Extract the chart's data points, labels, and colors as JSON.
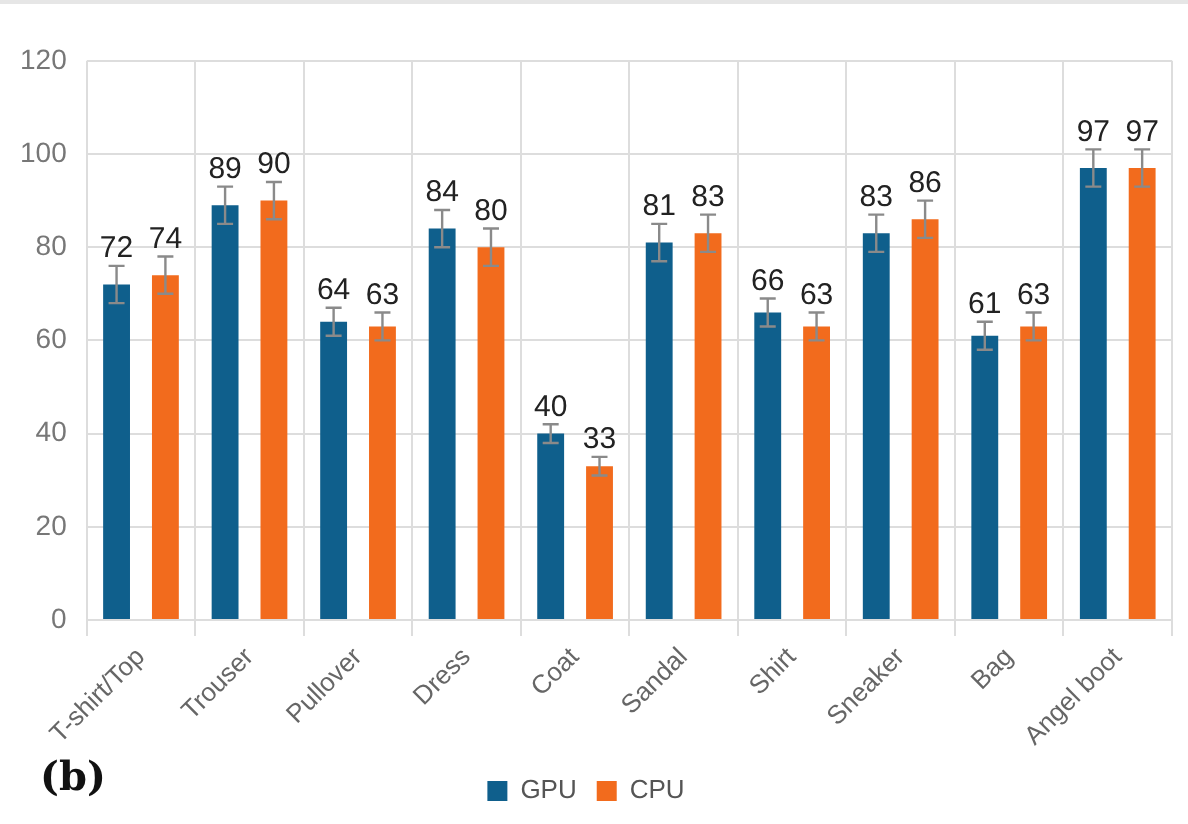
{
  "chart_data": {
    "type": "bar",
    "categories": [
      "T-shirt/Top",
      "Trouser",
      "Pullover",
      "Dress",
      "Coat",
      "Sandal",
      "Shirt",
      "Sneaker",
      "Bag",
      "Angel boot"
    ],
    "series": [
      {
        "name": "GPU",
        "color": "#0f5f8c",
        "values": [
          72,
          89,
          64,
          84,
          40,
          81,
          66,
          83,
          61,
          97
        ],
        "errors": [
          4,
          4,
          3,
          4,
          2,
          4,
          3,
          4,
          3,
          4
        ]
      },
      {
        "name": "CPU",
        "color": "#f26b1d",
        "values": [
          74,
          90,
          63,
          80,
          33,
          83,
          63,
          86,
          63,
          97
        ],
        "errors": [
          4,
          4,
          3,
          4,
          2,
          4,
          3,
          4,
          3,
          4
        ]
      }
    ],
    "ylim": [
      0,
      120
    ],
    "yticks": [
      0,
      20,
      40,
      60,
      80,
      100,
      120
    ],
    "grid": true,
    "legend": "bottom",
    "data_labels": true,
    "annotations": [
      "(b)"
    ]
  }
}
